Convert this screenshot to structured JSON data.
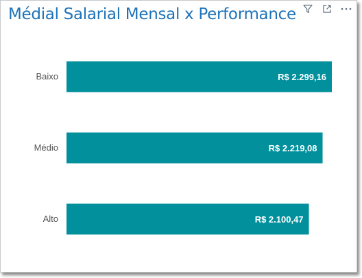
{
  "colors": {
    "title": "#1e73b9",
    "bar": "#01909c",
    "bar_label": "#ffffff",
    "category_label": "#555555",
    "icon": "#5f6b78"
  },
  "toolbar": {
    "icons": [
      "filter-icon",
      "focus-mode-icon",
      "more-options-icon"
    ]
  },
  "chart_data": {
    "type": "bar",
    "orientation": "horizontal",
    "title": "Médial Salarial Mensal x Performance",
    "categories": [
      "Baixo",
      "Médio",
      "Alto"
    ],
    "values": [
      2299.16,
      2219.08,
      2100.47
    ],
    "data_labels": [
      "R$ 2.299,16",
      "R$ 2.219,08",
      "R$ 2.100,47"
    ],
    "xlim": [
      0,
      2299.16
    ],
    "grid": false,
    "legend": "none"
  }
}
